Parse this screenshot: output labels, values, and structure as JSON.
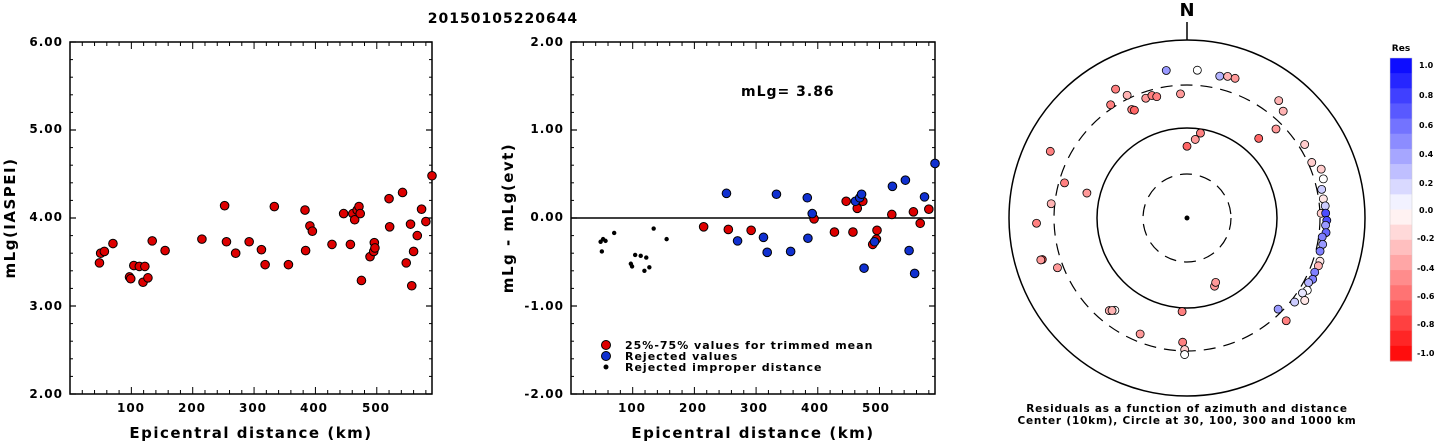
{
  "title": "20150105220644",
  "left_plot": {
    "ylabel": "mLg(IASPEI)",
    "xlabel": "Epicentral distance (km)",
    "yticks": [
      "2.00",
      "3.00",
      "4.00",
      "5.00",
      "6.00"
    ],
    "xticks": [
      "100",
      "200",
      "300",
      "400",
      "500"
    ]
  },
  "middle_plot": {
    "ylabel": "mLg - mLg(evt)",
    "xlabel": "Epicentral distance (km)",
    "yticks": [
      "-2.00",
      "-1.00",
      "0.00",
      "1.00",
      "2.00"
    ],
    "xticks": [
      "100",
      "200",
      "300",
      "400",
      "500"
    ],
    "annotation": "mLg= 3.86",
    "legend": [
      {
        "label": "25%-75% values for trimmed mean",
        "color": "#dd0000"
      },
      {
        "label": "Rejected values",
        "color": "#1030d0"
      },
      {
        "label": "Rejected improper distance",
        "color": "#000000"
      }
    ]
  },
  "polar_plot": {
    "north_label": "N",
    "caption_line1": "Residuals as a function of azimuth and distance",
    "caption_line2": "Center (10km), Circle at 30, 100, 300 and 1000 km"
  },
  "colorbar": {
    "title": "Res",
    "labels": [
      "1.0",
      "0.8",
      "0.6",
      "0.4",
      "0.2",
      "0.0",
      "-0.2",
      "-0.4",
      "-0.6",
      "-0.8",
      "-1.0"
    ]
  },
  "colors": {
    "accepted": "#dd0000",
    "rejected": "#1030d0",
    "improper": "#000000",
    "res_max": "#0000ff",
    "res_min": "#ff0000"
  },
  "chart_data": [
    {
      "type": "scatter",
      "xlabel": "Epicentral distance (km)",
      "ylabel": "mLg(IASPEI)",
      "xlim": [
        0,
        590
      ],
      "ylim": [
        2.0,
        6.0
      ],
      "points": [
        [
          48,
          3.49
        ],
        [
          50,
          3.6
        ],
        [
          56,
          3.62
        ],
        [
          70,
          3.71
        ],
        [
          97,
          3.33
        ],
        [
          99,
          3.31
        ],
        [
          104,
          3.46
        ],
        [
          113,
          3.45
        ],
        [
          119,
          3.27
        ],
        [
          122,
          3.45
        ],
        [
          127,
          3.32
        ],
        [
          134,
          3.74
        ],
        [
          155,
          3.63
        ],
        [
          215,
          3.76
        ],
        [
          252,
          4.14
        ],
        [
          255,
          3.73
        ],
        [
          270,
          3.6
        ],
        [
          292,
          3.73
        ],
        [
          312,
          3.64
        ],
        [
          318,
          3.47
        ],
        [
          333,
          4.13
        ],
        [
          356,
          3.47
        ],
        [
          383,
          4.09
        ],
        [
          384,
          3.63
        ],
        [
          391,
          3.91
        ],
        [
          395,
          3.85
        ],
        [
          427,
          3.7
        ],
        [
          446,
          4.05
        ],
        [
          457,
          3.7
        ],
        [
          461,
          4.05
        ],
        [
          464,
          3.98
        ],
        [
          468,
          4.09
        ],
        [
          471,
          4.13
        ],
        [
          473,
          4.05
        ],
        [
          475,
          3.29
        ],
        [
          489,
          3.56
        ],
        [
          495,
          3.62
        ],
        [
          496,
          3.72
        ],
        [
          497,
          3.66
        ],
        [
          520,
          4.22
        ],
        [
          521,
          3.9
        ],
        [
          542,
          4.29
        ],
        [
          548,
          3.49
        ],
        [
          555,
          3.93
        ],
        [
          557,
          3.23
        ],
        [
          560,
          3.62
        ],
        [
          566,
          3.8
        ],
        [
          573,
          4.1
        ],
        [
          580,
          3.96
        ],
        [
          590,
          4.48
        ]
      ]
    },
    {
      "type": "scatter",
      "xlabel": "Epicentral distance (km)",
      "ylabel": "mLg - mLg(evt)",
      "xlim": [
        0,
        590
      ],
      "ylim": [
        -2.0,
        2.0
      ],
      "reference_line": 0.0,
      "series": [
        {
          "name": "25%-75% values for trimmed mean",
          "points": [
            [
              215,
              -0.1
            ],
            [
              255,
              -0.13
            ],
            [
              292,
              -0.14
            ],
            [
              394,
              -0.01
            ],
            [
              427,
              -0.16
            ],
            [
              446,
              0.19
            ],
            [
              457,
              -0.16
            ],
            [
              464,
              0.11
            ],
            [
              473,
              0.19
            ],
            [
              489,
              -0.3
            ],
            [
              495,
              -0.24
            ],
            [
              496,
              -0.14
            ],
            [
              520,
              0.04
            ],
            [
              555,
              0.07
            ],
            [
              566,
              -0.06
            ],
            [
              580,
              0.1
            ]
          ]
        },
        {
          "name": "Rejected values",
          "points": [
            [
              252,
              0.28
            ],
            [
              270,
              -0.26
            ],
            [
              312,
              -0.22
            ],
            [
              318,
              -0.39
            ],
            [
              333,
              0.27
            ],
            [
              356,
              -0.38
            ],
            [
              383,
              0.23
            ],
            [
              384,
              -0.23
            ],
            [
              391,
              0.05
            ],
            [
              461,
              0.19
            ],
            [
              468,
              0.23
            ],
            [
              471,
              0.27
            ],
            [
              475,
              -0.57
            ],
            [
              492,
              -0.27
            ],
            [
              521,
              0.36
            ],
            [
              542,
              0.43
            ],
            [
              548,
              -0.37
            ],
            [
              557,
              -0.63
            ],
            [
              573,
              0.24
            ],
            [
              590,
              0.62
            ]
          ]
        },
        {
          "name": "Rejected improper distance",
          "points": [
            [
              48,
              -0.27
            ],
            [
              50,
              -0.38
            ],
            [
              52,
              -0.24
            ],
            [
              56,
              -0.26
            ],
            [
              70,
              -0.17
            ],
            [
              97,
              -0.52
            ],
            [
              99,
              -0.55
            ],
            [
              104,
              -0.42
            ],
            [
              113,
              -0.43
            ],
            [
              119,
              -0.6
            ],
            [
              122,
              -0.45
            ],
            [
              127,
              -0.56
            ],
            [
              134,
              -0.12
            ],
            [
              155,
              -0.24
            ]
          ]
        }
      ]
    },
    {
      "type": "scatter",
      "subtype": "polar",
      "description_axes": [
        "azimuth_deg",
        "distance_km",
        "residual"
      ],
      "rings_km": [
        30,
        100,
        300,
        1000
      ],
      "rings_style": [
        "dashed",
        "solid",
        "dashed",
        "solid"
      ],
      "points": [
        [
          6,
          75,
          -0.4
        ],
        [
          352,
          460,
          0.4
        ],
        [
          4,
          450,
          0.0
        ],
        [
          13,
          420,
          0.3
        ],
        [
          16,
          440,
          -0.3
        ],
        [
          19,
          445,
          -0.4
        ],
        [
          331,
          440,
          -0.5
        ],
        [
          334,
          330,
          -0.3
        ],
        [
          341,
          255,
          -0.4
        ],
        [
          344,
          260,
          -0.5
        ],
        [
          346,
          245,
          -0.5
        ],
        [
          326,
          330,
          -0.5
        ],
        [
          333,
          225,
          -0.5
        ],
        [
          334,
          215,
          -0.6
        ],
        [
          357,
          240,
          -0.4
        ],
        [
          0,
          62,
          -0.6
        ],
        [
          9,
          90,
          -0.5
        ],
        [
          296,
          500,
          -0.5
        ],
        [
          286,
          260,
          -0.5
        ],
        [
          284,
          140,
          -0.4
        ],
        [
          38,
          460,
          -0.3
        ],
        [
          42,
          400,
          -0.3
        ],
        [
          45,
          250,
          -0.4
        ],
        [
          42,
          155,
          -0.6
        ],
        [
          58,
          350,
          -0.2
        ],
        [
          70,
          390,
          -0.2
        ],
        [
          66,
          330,
          -0.2
        ],
        [
          74,
          380,
          0.0
        ],
        [
          78,
          340,
          0.2
        ],
        [
          82,
          340,
          -0.1
        ],
        [
          85,
          350,
          0.2
        ],
        [
          88,
          310,
          -0.2
        ],
        [
          88,
          350,
          0.7
        ],
        [
          91,
          360,
          0.7
        ],
        [
          93,
          350,
          0.4
        ],
        [
          96,
          360,
          0.6
        ],
        [
          98,
          330,
          0.5
        ],
        [
          101,
          345,
          0.4
        ],
        [
          104,
          335,
          0.5
        ],
        [
          108,
          360,
          -0.1
        ],
        [
          110,
          360,
          -0.3
        ],
        [
          113,
          350,
          0.5
        ],
        [
          116,
          360,
          0.5
        ],
        [
          118,
          340,
          0.3
        ],
        [
          121,
          365,
          0.0
        ],
        [
          123,
          340,
          0.1
        ],
        [
          125,
          400,
          -0.1
        ],
        [
          128,
          330,
          0.2
        ],
        [
          136,
          390,
          -0.5
        ],
        [
          158,
          65,
          -0.4
        ],
        [
          156,
          60,
          -0.4
        ],
        [
          183,
          110,
          -0.5
        ],
        [
          182,
          240,
          -0.5
        ],
        [
          181,
          290,
          -0.2
        ],
        [
          181,
          330,
          0.0
        ],
        [
          202,
          245,
          -0.4
        ],
        [
          218,
          200,
          0.0
        ],
        [
          220,
          220,
          -0.3
        ],
        [
          219,
          210,
          -0.3
        ],
        [
          254,
          480,
          -0.7
        ],
        [
          249,
          350,
          -0.4
        ],
        [
          254,
          500,
          -0.4
        ],
        [
          268,
          480,
          -0.5
        ],
        [
          276,
          330,
          -0.3
        ],
        [
          135,
          270,
          0.4
        ]
      ]
    }
  ]
}
